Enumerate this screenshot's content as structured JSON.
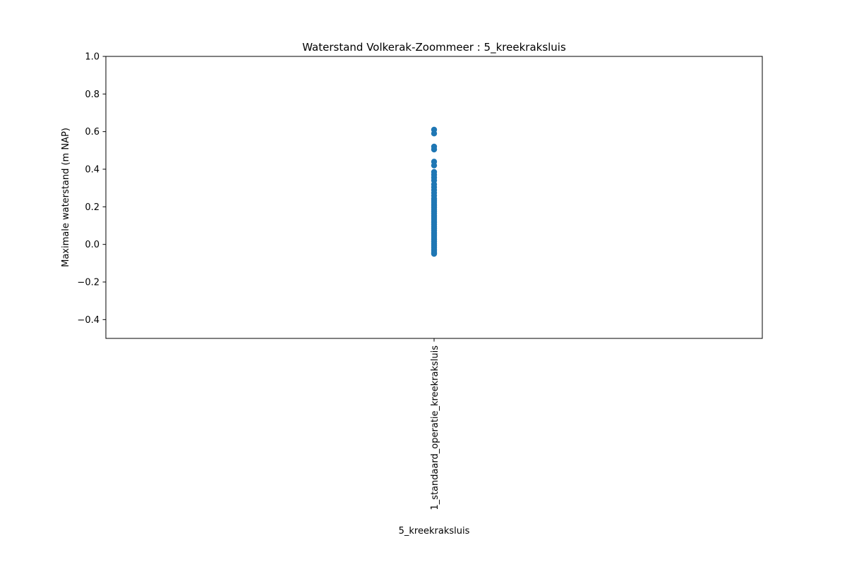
{
  "chart_data": {
    "type": "scatter",
    "title": "Waterstand Volkerak-Zoommeer : 5_kreekraksluis",
    "xlabel": "5_kreekraksluis",
    "ylabel": "Maximale waterstand (m NAP)",
    "categories": [
      "1_standaard_operatie_kreekraksluis"
    ],
    "ylim": [
      -0.5,
      1.0
    ],
    "yticks": [
      -0.4,
      -0.2,
      0.0,
      0.2,
      0.4,
      0.6,
      0.8,
      1.0
    ],
    "ytick_labels": [
      "−0.4",
      "−0.2",
      "0.0",
      "0.2",
      "0.4",
      "0.6",
      "0.8",
      "1.0"
    ],
    "grid": false,
    "series": [
      {
        "category": "1_standaard_operatie_kreekraksluis",
        "color": "#1f77b4",
        "values": [
          0.61,
          0.59,
          0.52,
          0.505,
          0.44,
          0.42,
          0.385,
          0.37,
          0.355,
          0.34,
          0.32,
          0.305,
          0.29,
          0.275,
          0.26,
          0.245,
          0.235,
          0.225,
          0.215,
          0.205,
          0.195,
          0.185,
          0.175,
          0.165,
          0.155,
          0.145,
          0.135,
          0.125,
          0.115,
          0.105,
          0.095,
          0.085,
          0.075,
          0.065,
          0.055,
          0.045,
          0.035,
          0.025,
          0.015,
          0.005,
          -0.005,
          -0.015,
          -0.025,
          -0.035,
          -0.045,
          -0.05
        ]
      }
    ]
  }
}
